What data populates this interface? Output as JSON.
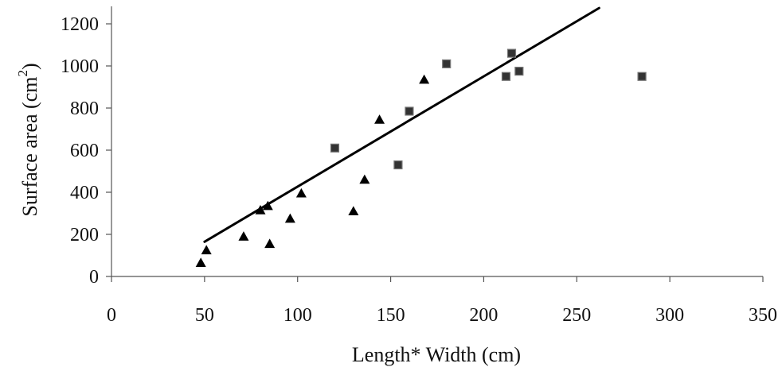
{
  "chart_data": {
    "type": "scatter",
    "title": "",
    "xlabel": "Length* Width (cm)",
    "ylabel_main": "Surface area (cm",
    "ylabel_sup": "2",
    "ylabel_close": ")",
    "xlim": [
      0,
      350
    ],
    "ylim": [
      0,
      1200
    ],
    "x_ticks": [
      0,
      50,
      100,
      150,
      200,
      250,
      300,
      350
    ],
    "y_ticks": [
      0,
      200,
      400,
      600,
      800,
      1000,
      1200
    ],
    "grid": false,
    "legend": "none",
    "series": [
      {
        "marker": "triangle",
        "color": "#000000",
        "points": [
          {
            "x": 48,
            "y": 65
          },
          {
            "x": 51,
            "y": 125
          },
          {
            "x": 71,
            "y": 190
          },
          {
            "x": 80,
            "y": 315
          },
          {
            "x": 84,
            "y": 335
          },
          {
            "x": 85,
            "y": 155
          },
          {
            "x": 96,
            "y": 275
          },
          {
            "x": 102,
            "y": 395
          },
          {
            "x": 130,
            "y": 310
          },
          {
            "x": 136,
            "y": 460
          },
          {
            "x": 144,
            "y": 745
          },
          {
            "x": 168,
            "y": 935
          }
        ]
      },
      {
        "marker": "square",
        "color": "#333333",
        "points": [
          {
            "x": 120,
            "y": 610
          },
          {
            "x": 154,
            "y": 530
          },
          {
            "x": 160,
            "y": 785
          },
          {
            "x": 180,
            "y": 1010
          },
          {
            "x": 212,
            "y": 950
          },
          {
            "x": 215,
            "y": 1060
          },
          {
            "x": 219,
            "y": 975
          },
          {
            "x": 285,
            "y": 950
          }
        ]
      }
    ],
    "trendline": {
      "type": "linear",
      "color": "#000000",
      "start": {
        "x": 50,
        "y": 165
      },
      "end": {
        "x": 262,
        "y": 1275
      }
    }
  }
}
